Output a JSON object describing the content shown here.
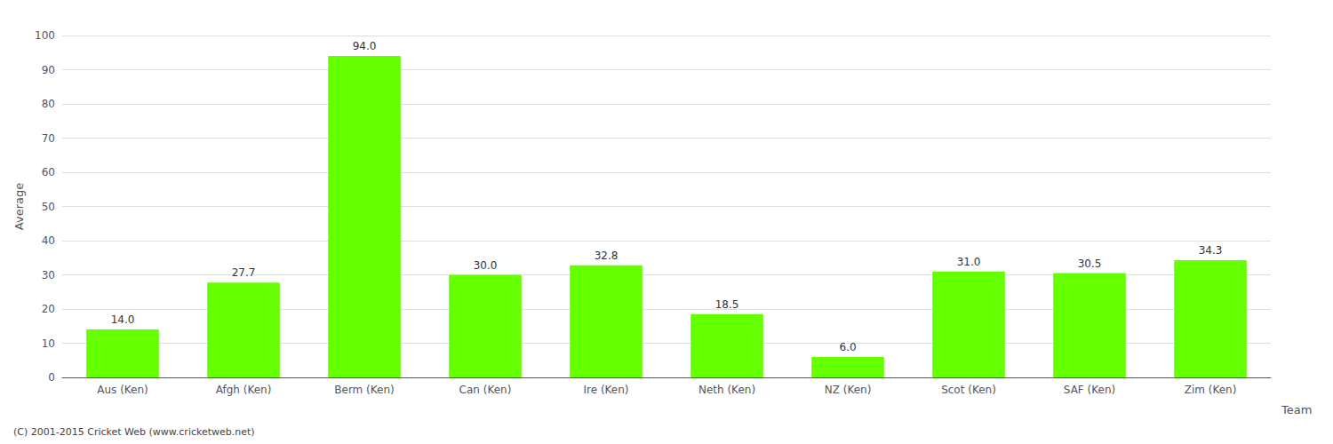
{
  "chart_data": {
    "type": "bar",
    "categories": [
      "Aus (Ken)",
      "Afgh (Ken)",
      "Berm (Ken)",
      "Can (Ken)",
      "Ire (Ken)",
      "Neth (Ken)",
      "NZ (Ken)",
      "Scot (Ken)",
      "SAF (Ken)",
      "Zim (Ken)"
    ],
    "values": [
      14.0,
      27.7,
      94.0,
      30.0,
      32.8,
      18.5,
      6.0,
      31.0,
      30.5,
      34.3
    ],
    "value_labels": [
      "14.0",
      "27.7",
      "94.0",
      "30.0",
      "32.8",
      "18.5",
      "6.0",
      "31.0",
      "30.5",
      "34.3"
    ],
    "color": "#66ff00",
    "xlabel": "Team",
    "ylabel": "Average",
    "ylim": [
      0,
      100
    ],
    "yticks": [
      0,
      10,
      20,
      30,
      40,
      50,
      60,
      70,
      80,
      90,
      100
    ],
    "grid": true,
    "data_labels": true,
    "annotations": [
      "(C) 2001-2015 Cricket Web (www.cricketweb.net)"
    ]
  }
}
